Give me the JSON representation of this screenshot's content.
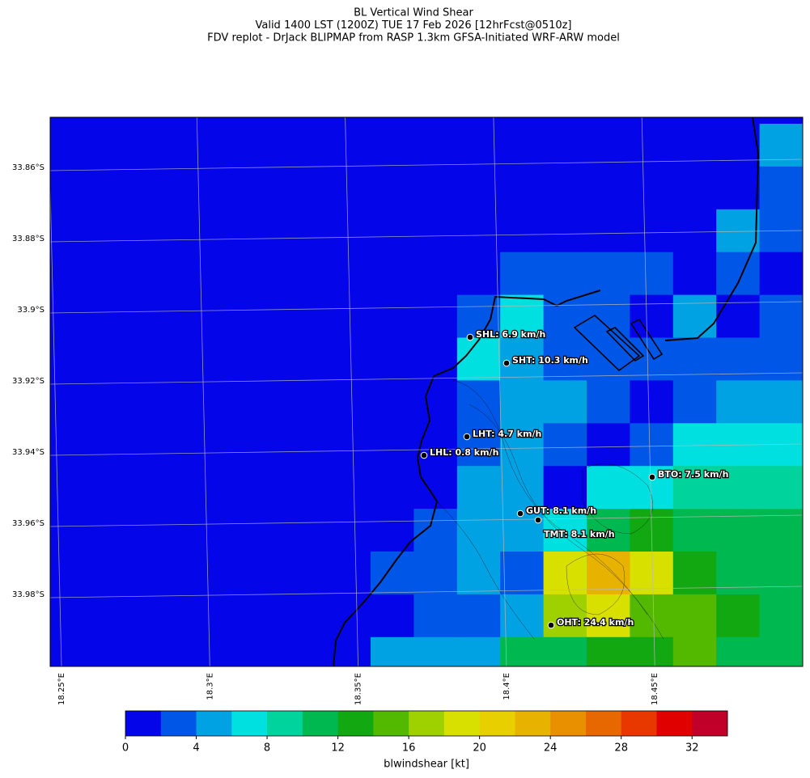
{
  "title": [
    "BL Vertical Wind Shear",
    "Valid 1400 LST (1200Z) TUE 17 Feb 2026 [12hrFcst@0510z]",
    "FDV replot - DrJack BLIPMAP from RASP 1.3km GFSA-Initiated WRF-ARW model"
  ],
  "lat_labels": [
    "33.86°S",
    "33.88°S",
    "33.9°S",
    "33.92°S",
    "33.94°S",
    "33.96°S",
    "33.98°S"
  ],
  "lon_labels": [
    "18.25°E",
    "18.3°E",
    "18.35°E",
    "18.4°E",
    "18.45°E"
  ],
  "stations": [
    "SHL: 6.9 km/h",
    "SHT: 10.3 km/h",
    "LHT: 4.7 km/h",
    "LHL: 0.8 km/h",
    "BTO: 7.5 km/h",
    "GUT: 8.1 km/h",
    "TMT: 8.1 km/h",
    "OHT: 24.4 km/h"
  ],
  "shear_grid": [
    [
      1,
      1,
      1,
      1,
      1,
      1,
      1,
      1,
      1,
      5
    ],
    [
      1,
      1,
      1,
      1,
      1,
      1,
      1,
      1,
      1,
      3
    ],
    [
      1,
      1,
      1,
      1,
      1,
      1,
      1,
      1,
      5,
      3
    ],
    [
      1,
      1,
      1,
      3,
      3,
      3,
      3,
      1,
      3,
      1
    ],
    [
      1,
      1,
      3,
      7,
      3,
      3,
      1,
      5,
      1,
      3
    ],
    [
      1,
      1,
      7,
      5,
      3,
      3,
      3,
      3,
      3,
      3
    ],
    [
      1,
      1,
      3,
      5,
      5,
      3,
      1,
      3,
      5,
      5
    ],
    [
      1,
      1,
      3,
      5,
      3,
      1,
      3,
      7,
      7,
      7
    ],
    [
      1,
      1,
      5,
      5,
      1,
      7,
      7,
      9,
      9,
      9
    ],
    [
      1,
      3,
      5,
      5,
      7,
      11,
      13,
      11,
      11,
      11
    ],
    [
      3,
      3,
      5,
      3,
      19,
      23,
      19,
      13,
      11,
      11
    ],
    [
      1,
      3,
      3,
      5,
      17,
      19,
      15,
      15,
      13,
      11
    ],
    [
      5,
      5,
      5,
      11,
      11,
      13,
      13,
      15,
      11,
      11
    ]
  ],
  "background_value": 1,
  "colorbar": {
    "label": "blwindshear [kt]",
    "lim": [
      0,
      34
    ],
    "ticks": [
      0,
      4,
      8,
      12,
      16,
      20,
      24,
      28,
      32
    ],
    "step": 2,
    "colors": [
      "#0505ea",
      "#0056e6",
      "#00a2e3",
      "#00e0e0",
      "#00d49c",
      "#00b850",
      "#12a812",
      "#52b800",
      "#9fd000",
      "#d8e000",
      "#e8d000",
      "#e8b200",
      "#e89000",
      "#e86800",
      "#e83800",
      "#e00000",
      "#c00028"
    ]
  }
}
